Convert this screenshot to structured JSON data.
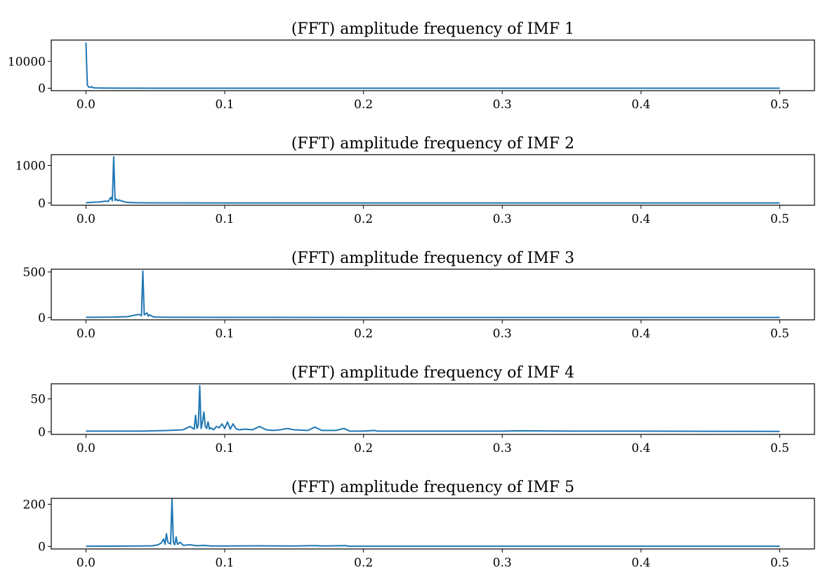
{
  "line_color": "#1f77b4",
  "chart_data": [
    {
      "type": "line",
      "title": "(FFT) amplitude frequency of IMF 1",
      "xlabel": "",
      "ylabel": "",
      "xlim": [
        -0.025,
        0.525
      ],
      "ylim": [
        -900,
        17900
      ],
      "xticks": [
        0.0,
        0.1,
        0.2,
        0.3,
        0.4,
        0.5
      ],
      "xtick_labels": [
        "0.0",
        "0.1",
        "0.2",
        "0.3",
        "0.4",
        "0.5"
      ],
      "yticks": [
        0,
        10000
      ],
      "ytick_labels": [
        "0",
        "10000"
      ],
      "series": [
        {
          "name": "IMF 1",
          "x": [
            0.0,
            0.0005,
            0.001,
            0.002,
            0.003,
            0.004,
            0.005,
            0.006,
            0.008,
            0.01,
            0.02,
            0.05,
            0.1,
            0.2,
            0.3,
            0.4,
            0.5
          ],
          "y": [
            17000,
            9000,
            1200,
            400,
            300,
            600,
            250,
            150,
            100,
            80,
            40,
            30,
            20,
            15,
            10,
            10,
            10
          ]
        }
      ]
    },
    {
      "type": "line",
      "title": "(FFT) amplitude frequency of IMF 2",
      "xlabel": "",
      "ylabel": "",
      "xlim": [
        -0.025,
        0.525
      ],
      "ylim": [
        -60,
        1290
      ],
      "xticks": [
        0.0,
        0.1,
        0.2,
        0.3,
        0.4,
        0.5
      ],
      "xtick_labels": [
        "0.0",
        "0.1",
        "0.2",
        "0.3",
        "0.4",
        "0.5"
      ],
      "yticks": [
        0,
        1000
      ],
      "ytick_labels": [
        "0",
        "1000"
      ],
      "series": [
        {
          "name": "IMF 2",
          "x": [
            0.0,
            0.005,
            0.01,
            0.014,
            0.016,
            0.018,
            0.019,
            0.02,
            0.021,
            0.022,
            0.023,
            0.024,
            0.026,
            0.028,
            0.03,
            0.035,
            0.04,
            0.05,
            0.1,
            0.2,
            0.3,
            0.4,
            0.5
          ],
          "y": [
            5,
            20,
            30,
            50,
            40,
            150,
            60,
            1230,
            70,
            100,
            60,
            80,
            50,
            30,
            15,
            8,
            5,
            3,
            2,
            1,
            1,
            1,
            1
          ]
        }
      ]
    },
    {
      "type": "line",
      "title": "(FFT) amplitude frequency of IMF 3",
      "xlabel": "",
      "ylabel": "",
      "xlim": [
        -0.025,
        0.525
      ],
      "ylim": [
        -25,
        530
      ],
      "xticks": [
        0.0,
        0.1,
        0.2,
        0.3,
        0.4,
        0.5
      ],
      "xtick_labels": [
        "0.0",
        "0.1",
        "0.2",
        "0.3",
        "0.4",
        "0.5"
      ],
      "yticks": [
        0,
        500
      ],
      "ytick_labels": [
        "0",
        "500"
      ],
      "series": [
        {
          "name": "IMF 3",
          "x": [
            0.0,
            0.02,
            0.03,
            0.035,
            0.038,
            0.04,
            0.041,
            0.042,
            0.044,
            0.045,
            0.046,
            0.048,
            0.05,
            0.06,
            0.1,
            0.2,
            0.3,
            0.4,
            0.5
          ],
          "y": [
            3,
            5,
            10,
            25,
            35,
            20,
            510,
            30,
            50,
            15,
            30,
            10,
            5,
            3,
            2,
            1,
            1,
            1,
            1
          ]
        }
      ]
    },
    {
      "type": "line",
      "title": "(FFT) amplitude frequency of IMF 4",
      "xlabel": "",
      "ylabel": "",
      "xlim": [
        -0.025,
        0.525
      ],
      "ylim": [
        -4,
        73
      ],
      "xticks": [
        0.0,
        0.1,
        0.2,
        0.3,
        0.4,
        0.5
      ],
      "xtick_labels": [
        "0.0",
        "0.1",
        "0.2",
        "0.3",
        "0.4",
        "0.5"
      ],
      "yticks": [
        0,
        50
      ],
      "ytick_labels": [
        "0",
        "50"
      ],
      "series": [
        {
          "name": "IMF 4",
          "x": [
            0.0,
            0.04,
            0.06,
            0.07,
            0.075,
            0.078,
            0.079,
            0.08,
            0.081,
            0.082,
            0.083,
            0.084,
            0.085,
            0.086,
            0.087,
            0.088,
            0.089,
            0.09,
            0.092,
            0.094,
            0.096,
            0.098,
            0.1,
            0.102,
            0.104,
            0.106,
            0.108,
            0.11,
            0.115,
            0.12,
            0.125,
            0.13,
            0.135,
            0.14,
            0.145,
            0.15,
            0.16,
            0.165,
            0.17,
            0.18,
            0.186,
            0.19,
            0.2,
            0.208,
            0.21,
            0.25,
            0.3,
            0.312,
            0.35,
            0.4,
            0.5
          ],
          "y": [
            1,
            1,
            2,
            3,
            8,
            4,
            25,
            5,
            10,
            70,
            5,
            15,
            30,
            8,
            5,
            15,
            4,
            6,
            3,
            8,
            6,
            12,
            5,
            15,
            4,
            12,
            5,
            3,
            4,
            3,
            8,
            3,
            2,
            3,
            5,
            3,
            2,
            7,
            2,
            2,
            5,
            1,
            1,
            2,
            1,
            1,
            1,
            1.5,
            1,
            1,
            0.5
          ]
        }
      ]
    },
    {
      "type": "line",
      "title": "(FFT) amplitude frequency of IMF 5",
      "xlabel": "",
      "ylabel": "",
      "xlim": [
        -0.025,
        0.525
      ],
      "ylim": [
        -12,
        228
      ],
      "xticks": [
        0.0,
        0.1,
        0.2,
        0.3,
        0.4,
        0.5
      ],
      "xtick_labels": [
        "0.0",
        "0.1",
        "0.2",
        "0.3",
        "0.4",
        "0.5"
      ],
      "yticks": [
        0,
        200
      ],
      "ytick_labels": [
        "0",
        "200"
      ],
      "series": [
        {
          "name": "IMF 5",
          "x": [
            0.0,
            0.04,
            0.048,
            0.052,
            0.054,
            0.056,
            0.057,
            0.058,
            0.059,
            0.06,
            0.061,
            0.062,
            0.063,
            0.064,
            0.065,
            0.066,
            0.068,
            0.07,
            0.075,
            0.08,
            0.085,
            0.09,
            0.1,
            0.125,
            0.15,
            0.166,
            0.17,
            0.187,
            0.19,
            0.2,
            0.3,
            0.4,
            0.5
          ],
          "y": [
            1,
            2,
            3,
            8,
            15,
            35,
            10,
            60,
            20,
            15,
            12,
            225,
            20,
            8,
            45,
            10,
            20,
            5,
            8,
            3,
            5,
            2,
            2,
            3,
            2,
            4,
            2,
            4,
            1,
            1,
            1,
            1,
            1
          ]
        }
      ]
    }
  ]
}
